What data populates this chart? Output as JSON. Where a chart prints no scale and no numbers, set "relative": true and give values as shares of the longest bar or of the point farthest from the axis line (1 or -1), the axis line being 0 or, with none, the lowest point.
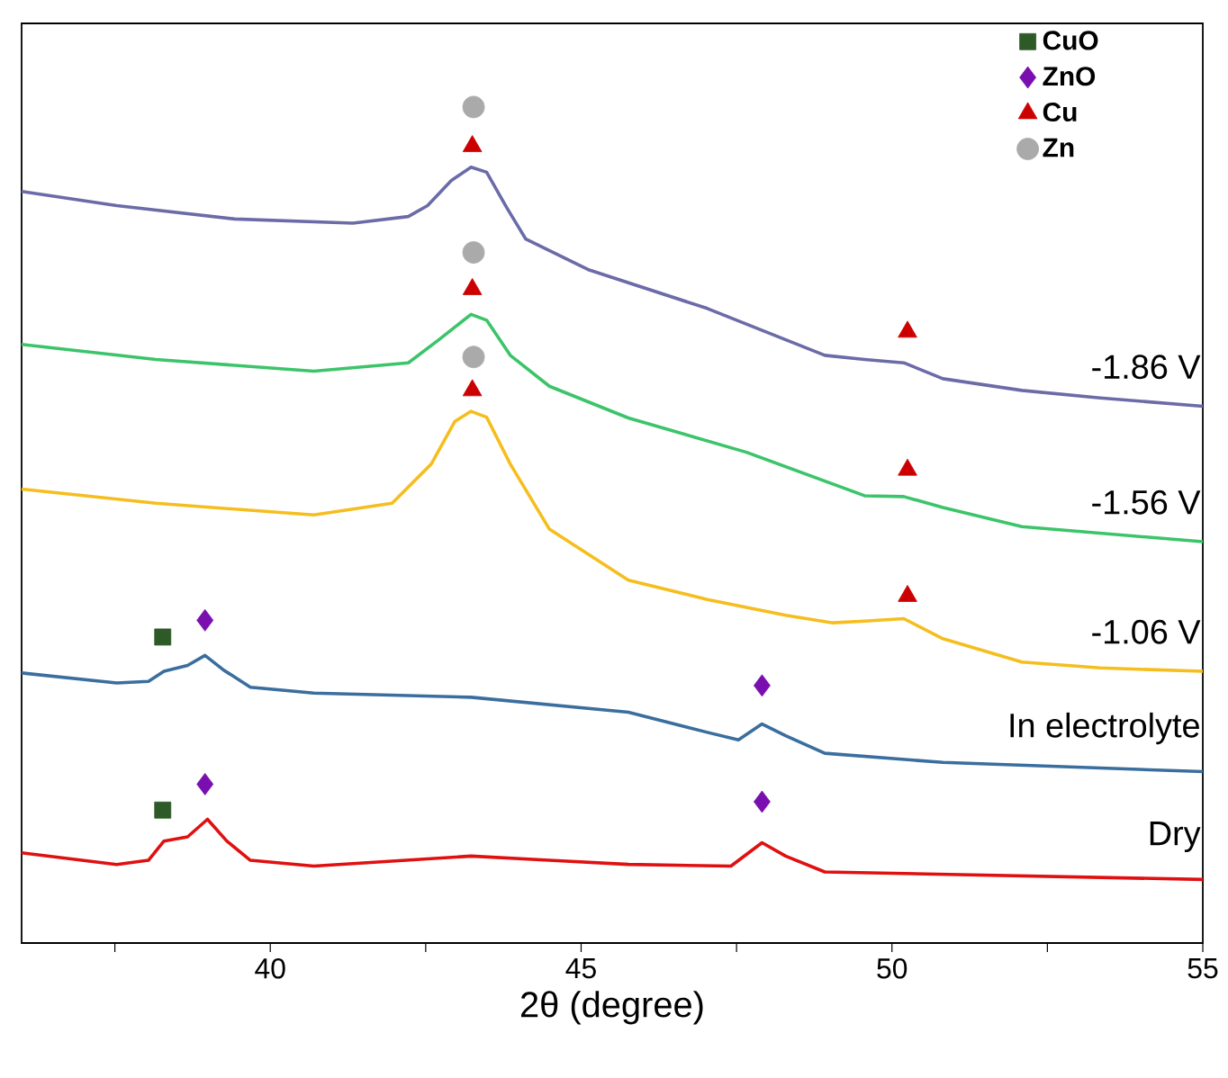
{
  "chart_data": {
    "type": "line",
    "relative": true,
    "xlabel": "2θ (degree)",
    "xlim": [
      36,
      55
    ],
    "xticks": [
      {
        "value": 37.5,
        "label": null
      },
      40,
      {
        "value": 42.5,
        "label": null
      },
      45,
      {
        "value": 47.5,
        "label": null
      },
      50,
      {
        "value": 52.5,
        "label": null
      },
      55
    ],
    "legend": "top right",
    "series": [
      {
        "name": "-1.86 V",
        "color": "#6b6ba8",
        "x": [
          36.0,
          37.53,
          39.43,
          41.33,
          42.22,
          42.53,
          42.91,
          43.23,
          43.48,
          43.8,
          44.11,
          45.13,
          47.03,
          48.92,
          49.56,
          50.19,
          50.82,
          52.09,
          53.35,
          55.0
        ],
        "values": [
          0.899,
          0.882,
          0.866,
          0.861,
          0.869,
          0.882,
          0.912,
          0.928,
          0.922,
          0.88,
          0.842,
          0.805,
          0.759,
          0.703,
          0.698,
          0.694,
          0.675,
          0.661,
          0.652,
          0.642
        ]
      },
      {
        "name": "-1.56 V",
        "color": "#3cc46a",
        "x": [
          36.0,
          38.16,
          40.7,
          42.22,
          42.72,
          43.23,
          43.48,
          43.86,
          44.49,
          45.76,
          47.66,
          49.56,
          50.19,
          50.82,
          52.09,
          55.0
        ],
        "values": [
          0.716,
          0.698,
          0.684,
          0.694,
          0.722,
          0.752,
          0.745,
          0.703,
          0.666,
          0.628,
          0.587,
          0.535,
          0.534,
          0.521,
          0.498,
          0.48
        ]
      },
      {
        "name": "-1.06 V",
        "color": "#f5be1e",
        "x": [
          36.0,
          38.16,
          40.7,
          41.96,
          42.59,
          42.97,
          43.23,
          43.48,
          43.86,
          44.49,
          45.76,
          47.03,
          48.29,
          49.05,
          49.56,
          50.19,
          50.82,
          52.09,
          53.35,
          55.0
        ],
        "values": [
          0.543,
          0.526,
          0.512,
          0.526,
          0.573,
          0.624,
          0.636,
          0.629,
          0.573,
          0.495,
          0.434,
          0.411,
          0.392,
          0.383,
          0.385,
          0.388,
          0.364,
          0.336,
          0.329,
          0.325
        ]
      },
      {
        "name": "In electrolyte",
        "color": "#3a6e9e",
        "x": [
          36.0,
          37.53,
          38.04,
          38.29,
          38.67,
          38.95,
          39.24,
          39.68,
          40.7,
          43.23,
          45.76,
          47.03,
          47.53,
          47.91,
          48.29,
          48.92,
          50.82,
          55.0
        ],
        "values": [
          0.323,
          0.311,
          0.313,
          0.325,
          0.332,
          0.344,
          0.327,
          0.306,
          0.299,
          0.294,
          0.276,
          0.252,
          0.243,
          0.262,
          0.248,
          0.227,
          0.216,
          0.205
        ]
      },
      {
        "name": "Dry",
        "color": "#e01010",
        "x": [
          36.0,
          37.53,
          38.04,
          38.29,
          38.67,
          38.99,
          39.3,
          39.68,
          40.7,
          43.23,
          44.49,
          45.76,
          47.41,
          47.91,
          48.29,
          48.92,
          55.0
        ],
        "values": [
          0.108,
          0.094,
          0.099,
          0.122,
          0.127,
          0.148,
          0.122,
          0.099,
          0.092,
          0.104,
          0.099,
          0.094,
          0.092,
          0.12,
          0.104,
          0.085,
          0.076
        ]
      },
      {
        "name": "CuO",
        "type": "scatter",
        "marker": "square",
        "color": "#2d5a27",
        "x": [
          38.27,
          38.27
        ],
        "values": [
          0.366,
          0.159
        ]
      },
      {
        "name": "ZnO",
        "type": "scatter",
        "marker": "diamond",
        "color": "#7a0fb0",
        "x": [
          38.95,
          47.91,
          38.95,
          47.91
        ],
        "values": [
          0.386,
          0.308,
          0.19,
          0.169
        ]
      },
      {
        "name": "Cu",
        "type": "scatter",
        "marker": "triangle",
        "color": "#cc0000",
        "x": [
          43.25,
          43.25,
          43.25,
          50.25,
          50.25,
          50.25
        ],
        "values": [
          0.953,
          0.782,
          0.661,
          0.731,
          0.566,
          0.415
        ]
      },
      {
        "name": "Zn",
        "type": "scatter",
        "marker": "circle",
        "color": "#aaaaaa",
        "x": [
          43.27,
          43.27,
          43.27
        ],
        "values": [
          1.0,
          0.826,
          0.701
        ]
      }
    ]
  }
}
